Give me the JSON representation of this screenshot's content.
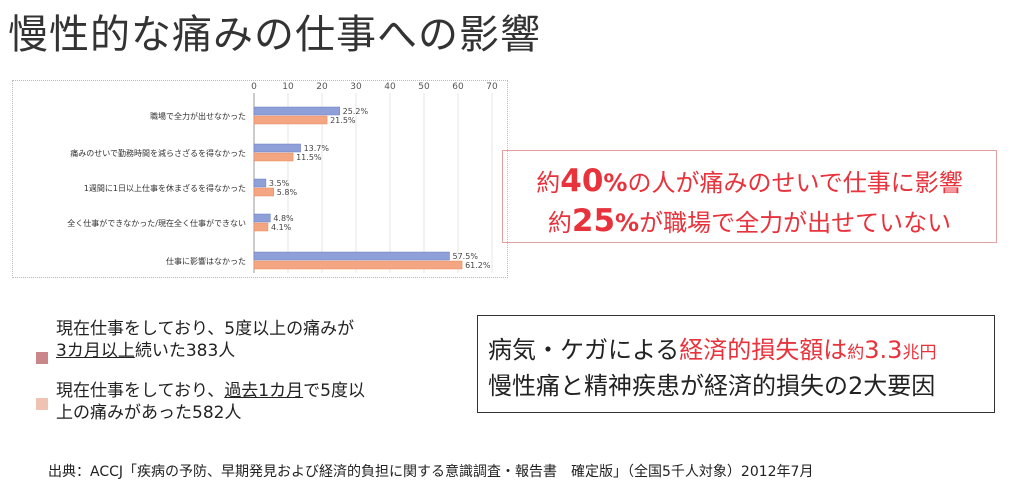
{
  "title": "慢性的な痛みの仕事への影響",
  "chart_data": {
    "type": "bar",
    "orientation": "horizontal",
    "categories": [
      "職場で全力が出せなかった",
      "痛みのせいで勤務時間を減らさざるを得なかった",
      "1週間に1日以上仕事を休まざるを得なかった",
      "全く仕事ができなかった/現在全く仕事ができない",
      "仕事に影響はなかった"
    ],
    "series": [
      {
        "values": [
          25.2,
          13.7,
          3.5,
          4.8,
          57.5
        ],
        "labels": [
          "25.2%",
          "13.7%",
          "3.5%",
          "4.8%",
          "57.5%"
        ],
        "color": "#8f9fd8"
      },
      {
        "values": [
          21.5,
          11.5,
          5.8,
          4.1,
          61.2
        ],
        "labels": [
          "21.5%",
          "11.5%",
          "5.8%",
          "4.1%",
          "61.2%"
        ],
        "color": "#f4a582"
      }
    ],
    "xticks": [
      "0",
      "10",
      "20",
      "30",
      "40",
      "50",
      "60",
      "70"
    ],
    "xlim": [
      0,
      70
    ],
    "axis_position": "top"
  },
  "callout1": {
    "l1_pre": "約",
    "l1_big": "40",
    "l1_pct": "%",
    "l1_post": "の人が痛みのせいで仕事に影響",
    "l2_pre": "約",
    "l2_big": "25",
    "l2_pct": "%",
    "l2_post": "が職場で全力が出せていない"
  },
  "legend": {
    "item1": {
      "line1": "現在仕事をしており、5度以上の痛みが",
      "under": "3カ月以上",
      "rest": "続いた383人",
      "color": "#c9878a"
    },
    "item2": {
      "pre": "現在仕事をしており、",
      "under": "過去1カ月",
      "post": "で5度以",
      "line2": "上の痛みがあった582人",
      "color": "#efc3b3"
    }
  },
  "callout2": {
    "l1_pre": "病気・ケガによる",
    "l1_red": "経済的損失額は",
    "l1_small1": "約",
    "l1_num": "3.3",
    "l1_small2": "兆円",
    "l2": "慢性痛と精神疾患が経済的損失の2大要因"
  },
  "source": "出典：ACCJ「疾病の予防、早期発見および経済的負担に関する意識調査・報告書　確定版」（全国5千人対象）2012年7月"
}
